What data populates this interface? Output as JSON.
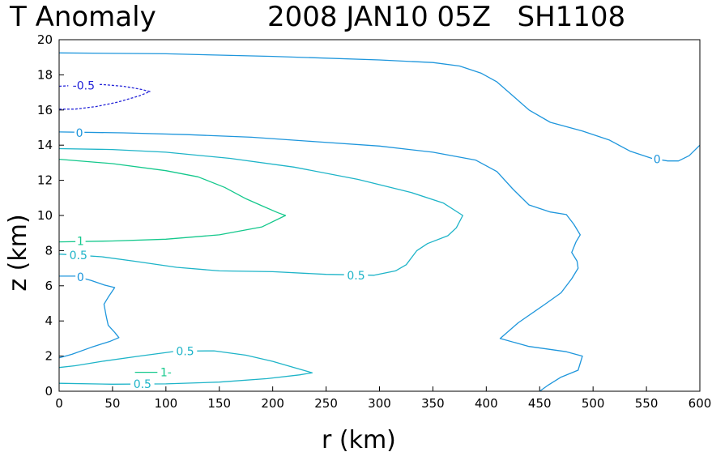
{
  "chart_data": {
    "type": "line",
    "subtype": "contour",
    "title_left": "T Anomaly",
    "title_right": "2008 JAN10 05Z   SH1108",
    "xlabel": "r (km)",
    "ylabel": "z (km)",
    "xlim": [
      0,
      600
    ],
    "ylim": [
      0,
      20
    ],
    "xticks": [
      "0",
      "50",
      "100",
      "150",
      "200",
      "250",
      "300",
      "350",
      "400",
      "450",
      "500",
      "550",
      "600"
    ],
    "yticks": [
      "0",
      "2",
      "4",
      "6",
      "8",
      "10",
      "12",
      "14",
      "16",
      "18",
      "20"
    ],
    "colors": {
      "neg": "#2323d8",
      "zero": "#1e96dc",
      "half": "#1eb4c8",
      "one": "#14c88c",
      "axis": "#000000"
    },
    "series": [
      {
        "name": "-0.5 upper",
        "level": "-0.5",
        "color_key": "neg",
        "dashed": true,
        "points": [
          [
            0,
            17.35
          ],
          [
            15,
            17.4
          ],
          [
            40,
            17.45
          ],
          [
            60,
            17.35
          ],
          [
            75,
            17.2
          ],
          [
            85,
            17.05
          ],
          [
            75,
            16.8
          ],
          [
            55,
            16.45
          ],
          [
            35,
            16.2
          ],
          [
            15,
            16.05
          ],
          [
            0,
            16.05
          ]
        ]
      },
      {
        "name": "0 upper",
        "level": "0",
        "color_key": "zero",
        "dashed": false,
        "points": [
          [
            0,
            19.25
          ],
          [
            100,
            19.2
          ],
          [
            200,
            19.05
          ],
          [
            300,
            18.85
          ],
          [
            350,
            18.7
          ],
          [
            375,
            18.5
          ],
          [
            395,
            18.1
          ],
          [
            410,
            17.6
          ],
          [
            425,
            16.8
          ],
          [
            440,
            16.0
          ],
          [
            460,
            15.3
          ],
          [
            490,
            14.8
          ],
          [
            515,
            14.3
          ],
          [
            535,
            13.65
          ],
          [
            555,
            13.25
          ],
          [
            570,
            13.1
          ],
          [
            580,
            13.1
          ],
          [
            590,
            13.4
          ],
          [
            600,
            14.0
          ]
        ]
      },
      {
        "name": "0 mid",
        "level": "0",
        "color_key": "zero",
        "dashed": false,
        "points": [
          [
            0,
            14.75
          ],
          [
            60,
            14.7
          ],
          [
            120,
            14.6
          ],
          [
            180,
            14.45
          ],
          [
            240,
            14.2
          ],
          [
            300,
            13.95
          ],
          [
            350,
            13.6
          ],
          [
            390,
            13.15
          ],
          [
            410,
            12.5
          ],
          [
            425,
            11.5
          ],
          [
            440,
            10.6
          ],
          [
            460,
            10.2
          ],
          [
            475,
            10.05
          ],
          [
            482,
            9.5
          ],
          [
            488,
            8.9
          ],
          [
            484,
            8.5
          ],
          [
            480,
            7.9
          ],
          [
            485,
            7.4
          ],
          [
            486,
            7.0
          ],
          [
            480,
            6.4
          ],
          [
            470,
            5.6
          ],
          [
            455,
            4.95
          ],
          [
            430,
            3.9
          ],
          [
            413,
            3.0
          ],
          [
            440,
            2.55
          ],
          [
            475,
            2.25
          ],
          [
            490,
            2.0
          ],
          [
            486,
            1.2
          ],
          [
            470,
            0.8
          ],
          [
            458,
            0.35
          ],
          [
            450,
            0.0
          ]
        ]
      },
      {
        "name": "0 lower",
        "level": "0",
        "color_key": "zero",
        "dashed": false,
        "points": [
          [
            0,
            6.55
          ],
          [
            15,
            6.55
          ],
          [
            30,
            6.3
          ],
          [
            42,
            6.05
          ],
          [
            52,
            5.9
          ],
          [
            46,
            5.35
          ],
          [
            42,
            4.95
          ],
          [
            44,
            4.3
          ],
          [
            46,
            3.75
          ],
          [
            52,
            3.35
          ],
          [
            56,
            3.05
          ],
          [
            48,
            2.85
          ],
          [
            30,
            2.5
          ],
          [
            12,
            2.1
          ],
          [
            0,
            1.9
          ]
        ]
      },
      {
        "name": "0.5 upper",
        "level": "0.5",
        "color_key": "half",
        "dashed": false,
        "points": [
          [
            0,
            13.8
          ],
          [
            50,
            13.75
          ],
          [
            100,
            13.6
          ],
          [
            160,
            13.25
          ],
          [
            220,
            12.75
          ],
          [
            280,
            12.05
          ],
          [
            330,
            11.3
          ],
          [
            360,
            10.7
          ],
          [
            378,
            10.0
          ],
          [
            372,
            9.3
          ],
          [
            364,
            8.85
          ],
          [
            345,
            8.4
          ],
          [
            335,
            8.0
          ],
          [
            325,
            7.2
          ],
          [
            315,
            6.85
          ],
          [
            295,
            6.6
          ],
          [
            250,
            6.65
          ],
          [
            200,
            6.8
          ],
          [
            150,
            6.85
          ],
          [
            110,
            7.05
          ],
          [
            70,
            7.4
          ],
          [
            40,
            7.65
          ],
          [
            15,
            7.75
          ],
          [
            0,
            7.8
          ]
        ]
      },
      {
        "name": "1 upper",
        "level": "1",
        "color_key": "one",
        "dashed": false,
        "points": [
          [
            0,
            13.2
          ],
          [
            50,
            12.95
          ],
          [
            100,
            12.55
          ],
          [
            130,
            12.2
          ],
          [
            155,
            11.6
          ],
          [
            175,
            10.95
          ],
          [
            190,
            10.55
          ],
          [
            205,
            10.15
          ],
          [
            212,
            10.0
          ],
          [
            190,
            9.35
          ],
          [
            150,
            8.9
          ],
          [
            100,
            8.65
          ],
          [
            50,
            8.55
          ],
          [
            0,
            8.5
          ]
        ]
      },
      {
        "name": "0.5 lower",
        "level": "0.5",
        "color_key": "half",
        "dashed": false,
        "points": [
          [
            0,
            0.45
          ],
          [
            50,
            0.4
          ],
          [
            100,
            0.42
          ],
          [
            150,
            0.52
          ],
          [
            195,
            0.72
          ],
          [
            225,
            0.93
          ],
          [
            237,
            1.05
          ],
          [
            220,
            1.35
          ],
          [
            200,
            1.7
          ],
          [
            175,
            2.05
          ],
          [
            145,
            2.3
          ],
          [
            110,
            2.28
          ],
          [
            75,
            2.0
          ],
          [
            40,
            1.7
          ],
          [
            15,
            1.45
          ],
          [
            0,
            1.35
          ]
        ]
      },
      {
        "name": "1 lower",
        "level": "1",
        "color_key": "one",
        "dashed": false,
        "points": [
          [
            71,
            1.08
          ],
          [
            100,
            1.08
          ]
        ]
      }
    ],
    "contour_labels": [
      {
        "text": "-0.5",
        "x": 23,
        "y": 17.4,
        "color_key": "neg"
      },
      {
        "text": "0",
        "x": 19,
        "y": 14.7,
        "color_key": "zero"
      },
      {
        "text": "0",
        "x": 560,
        "y": 13.2,
        "color_key": "zero"
      },
      {
        "text": "1",
        "x": 20,
        "y": 8.55,
        "color_key": "one"
      },
      {
        "text": "0.5",
        "x": 18,
        "y": 7.75,
        "color_key": "half"
      },
      {
        "text": "0",
        "x": 20,
        "y": 6.5,
        "color_key": "zero"
      },
      {
        "text": "0.5",
        "x": 278,
        "y": 6.6,
        "color_key": "half"
      },
      {
        "text": "0.5",
        "x": 118,
        "y": 2.28,
        "color_key": "half"
      },
      {
        "text": "1-",
        "x": 100,
        "y": 1.08,
        "color_key": "one"
      },
      {
        "text": "0.5",
        "x": 78,
        "y": 0.42,
        "color_key": "half"
      }
    ]
  }
}
